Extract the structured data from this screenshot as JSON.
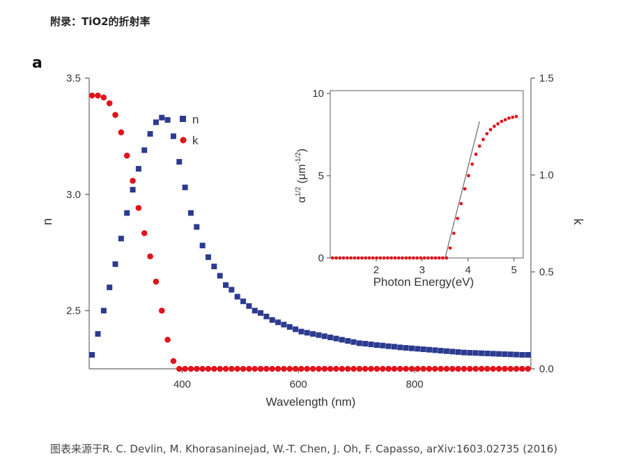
{
  "page": {
    "heading": "附录：TiO2的折射率",
    "panel_label": "a",
    "caption": "图表来源于R. C. Devlin, M. Khorasaninejad, W.-T. Chen, J. Oh, F. Capasso, arXiv:1603.02735 (2016)"
  },
  "colors": {
    "n_series": "#2b3b8f",
    "k_series": "#e0141c",
    "axis": "#555555",
    "fit_line": "#666666"
  },
  "chart_data": [
    {
      "type": "scatter",
      "title": "",
      "xlabel": "Wavelength (nm)",
      "ylabel_left": "n",
      "ylabel_right": "k",
      "xlim": [
        240,
        1000
      ],
      "ylim_left": [
        2.25,
        3.5
      ],
      "ylim_right": [
        0.0,
        1.5
      ],
      "xticks": [
        400,
        600,
        800
      ],
      "xtick_labels": [
        "400",
        "600",
        "800"
      ],
      "yticks_left": [
        2.5,
        3.0,
        3.5
      ],
      "ytick_labels_left": [
        "2.5",
        "3.0",
        "3.5"
      ],
      "yticks_right": [
        0.0,
        0.5,
        1.0,
        1.5
      ],
      "ytick_labels_right": [
        "0.0",
        "0.5",
        "1.0",
        "1.5"
      ],
      "legend": [
        "n",
        "k"
      ],
      "legend_position": "top-center",
      "series": [
        {
          "name": "n",
          "axis": "left",
          "marker": "square",
          "x": [
            245,
            255,
            265,
            275,
            285,
            295,
            305,
            315,
            325,
            335,
            345,
            355,
            365,
            375,
            385,
            395,
            405,
            415,
            425,
            435,
            445,
            455,
            465,
            475,
            485,
            495,
            505,
            515,
            525,
            535,
            545,
            555,
            565,
            575,
            585,
            595,
            605,
            615,
            625,
            635,
            645,
            655,
            665,
            675,
            685,
            695,
            705,
            715,
            725,
            735,
            745,
            755,
            765,
            775,
            785,
            795,
            805,
            815,
            825,
            835,
            845,
            855,
            865,
            875,
            885,
            895,
            905,
            915,
            925,
            935,
            945,
            955,
            965,
            975,
            985,
            995
          ],
          "values": [
            2.31,
            2.4,
            2.5,
            2.6,
            2.7,
            2.81,
            2.92,
            3.02,
            3.11,
            3.19,
            3.26,
            3.31,
            3.33,
            3.32,
            3.25,
            3.14,
            3.03,
            2.92,
            2.86,
            2.78,
            2.73,
            2.69,
            2.65,
            2.61,
            2.59,
            2.56,
            2.54,
            2.52,
            2.5,
            2.49,
            2.475,
            2.46,
            2.45,
            2.44,
            2.43,
            2.42,
            2.41,
            2.405,
            2.4,
            2.395,
            2.39,
            2.385,
            2.38,
            2.375,
            2.37,
            2.365,
            2.36,
            2.358,
            2.355,
            2.352,
            2.35,
            2.347,
            2.345,
            2.342,
            2.34,
            2.338,
            2.336,
            2.334,
            2.332,
            2.33,
            2.328,
            2.326,
            2.324,
            2.322,
            2.32,
            2.319,
            2.318,
            2.317,
            2.316,
            2.315,
            2.314,
            2.313,
            2.312,
            2.311,
            2.31,
            2.31
          ]
        },
        {
          "name": "k",
          "axis": "right",
          "marker": "circle",
          "x": [
            245,
            255,
            265,
            275,
            285,
            295,
            305,
            315,
            325,
            335,
            345,
            355,
            365,
            375,
            385,
            395,
            405,
            415,
            425,
            435,
            445,
            455,
            465,
            475,
            485,
            495,
            505,
            515,
            525,
            535,
            545,
            555,
            565,
            575,
            585,
            595,
            605,
            615,
            625,
            635,
            645,
            655,
            665,
            675,
            685,
            695,
            705,
            715,
            725,
            735,
            745,
            755,
            765,
            775,
            785,
            795,
            805,
            815,
            825,
            835,
            845,
            855,
            865,
            875,
            885,
            895,
            905,
            915,
            925,
            935,
            945,
            955,
            965,
            975,
            985,
            995
          ],
          "values": [
            1.41,
            1.41,
            1.4,
            1.37,
            1.31,
            1.22,
            1.1,
            0.97,
            0.83,
            0.7,
            0.58,
            0.45,
            0.3,
            0.15,
            0.04,
            0.0,
            0.0,
            0.0,
            0.0,
            0.0,
            0.0,
            0.0,
            0.0,
            0.0,
            0.0,
            0.0,
            0.0,
            0.0,
            0.0,
            0.0,
            0.0,
            0.0,
            0.0,
            0.0,
            0.0,
            0.0,
            0.0,
            0.0,
            0.0,
            0.0,
            0.0,
            0.0,
            0.0,
            0.0,
            0.0,
            0.0,
            0.0,
            0.0,
            0.0,
            0.0,
            0.0,
            0.0,
            0.0,
            0.0,
            0.0,
            0.0,
            0.0,
            0.0,
            0.0,
            0.0,
            0.0,
            0.0,
            0.0,
            0.0,
            0.0,
            0.0,
            0.0,
            0.0,
            0.0,
            0.0,
            0.0,
            0.0,
            0.0,
            0.0,
            0.0,
            0.0
          ]
        }
      ]
    },
    {
      "type": "scatter",
      "title": "",
      "xlabel": "Photon Energy(eV)",
      "ylabel": "α1/2 (μm-1/2)",
      "ylabel_parts": {
        "base": "α",
        "sup1": "1/2",
        "mid": " (μm",
        "sup2": "-1/2",
        "end": ")"
      },
      "xlim": [
        1.0,
        5.2
      ],
      "ylim": [
        0,
        10
      ],
      "xticks": [
        2,
        3,
        4,
        5
      ],
      "xtick_labels": [
        "2",
        "3",
        "4",
        "5"
      ],
      "yticks": [
        0,
        5,
        10
      ],
      "ytick_labels": [
        "0",
        "5",
        "10"
      ],
      "series": [
        {
          "name": "α1/2",
          "marker": "circle",
          "x": [
            1.05,
            1.13,
            1.21,
            1.29,
            1.37,
            1.45,
            1.53,
            1.61,
            1.69,
            1.77,
            1.85,
            1.93,
            2.01,
            2.09,
            2.17,
            2.25,
            2.33,
            2.41,
            2.49,
            2.57,
            2.65,
            2.73,
            2.81,
            2.89,
            2.97,
            3.05,
            3.13,
            3.21,
            3.29,
            3.37,
            3.45,
            3.53,
            3.61,
            3.69,
            3.77,
            3.85,
            3.93,
            4.01,
            4.09,
            4.17,
            4.25,
            4.33,
            4.41,
            4.49,
            4.57,
            4.65,
            4.73,
            4.81,
            4.89,
            4.97,
            5.05
          ],
          "values": [
            0,
            0,
            0,
            0,
            0,
            0,
            0,
            0,
            0,
            0,
            0,
            0,
            0,
            0,
            0,
            0,
            0,
            0,
            0,
            0,
            0,
            0,
            0,
            0,
            0,
            0,
            0,
            0,
            0,
            0,
            0,
            0,
            0.6,
            1.5,
            2.4,
            3.3,
            4.2,
            5.0,
            5.7,
            6.3,
            6.8,
            7.2,
            7.55,
            7.8,
            8.0,
            8.15,
            8.3,
            8.4,
            8.5,
            8.55,
            8.6
          ]
        },
        {
          "name": "linear fit",
          "type": "line",
          "x": [
            3.5,
            4.25
          ],
          "values": [
            0,
            8.3
          ]
        }
      ]
    }
  ]
}
